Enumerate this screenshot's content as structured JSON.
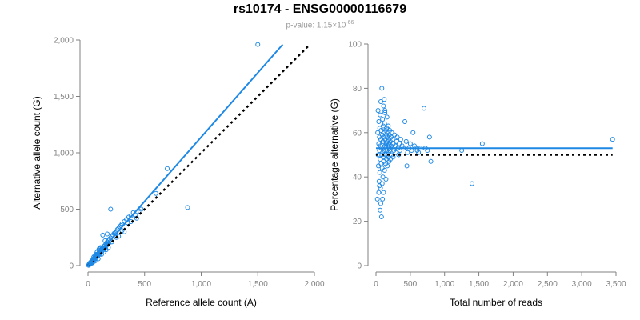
{
  "header": {
    "title": "rs10174 - ENSG00000116679",
    "pvalue_prefix": "p-value: 1.15×10",
    "pvalue_exponent": "-66"
  },
  "colors": {
    "points": "#1e88e5",
    "fit_line": "#1e88e5",
    "reference_line": "#000000",
    "axis": "#808080"
  },
  "chart_data": [
    {
      "type": "scatter",
      "title": "",
      "xlabel": "Reference allele count (A)",
      "ylabel": "Alternative allele count (G)",
      "xlim": [
        0,
        2000
      ],
      "ylim": [
        0,
        2000
      ],
      "xticks": [
        0,
        500,
        1000,
        1500,
        2000
      ],
      "xtick_labels": [
        "0",
        "500",
        "1,000",
        "1,500",
        "2,000"
      ],
      "yticks": [
        0,
        500,
        1000,
        1500,
        2000
      ],
      "ytick_labels": [
        "0",
        "500",
        "1,000",
        "1,500",
        "2,000"
      ],
      "grid": false,
      "fit_line": {
        "x": [
          0,
          1720
        ],
        "y": [
          0,
          1960
        ]
      },
      "reference_line": {
        "x": [
          0,
          1950
        ],
        "y": [
          0,
          1950
        ]
      },
      "points": [
        [
          10,
          12
        ],
        [
          15,
          18
        ],
        [
          20,
          25
        ],
        [
          12,
          8
        ],
        [
          25,
          30
        ],
        [
          30,
          35
        ],
        [
          18,
          22
        ],
        [
          35,
          40
        ],
        [
          40,
          48
        ],
        [
          28,
          33
        ],
        [
          45,
          52
        ],
        [
          50,
          60
        ],
        [
          22,
          28
        ],
        [
          55,
          65
        ],
        [
          60,
          70
        ],
        [
          38,
          45
        ],
        [
          65,
          75
        ],
        [
          70,
          80
        ],
        [
          48,
          55
        ],
        [
          75,
          85
        ],
        [
          80,
          95
        ],
        [
          58,
          68
        ],
        [
          85,
          100
        ],
        [
          90,
          105
        ],
        [
          68,
          78
        ],
        [
          95,
          110
        ],
        [
          100,
          120
        ],
        [
          78,
          90
        ],
        [
          105,
          125
        ],
        [
          110,
          130
        ],
        [
          88,
          100
        ],
        [
          115,
          140
        ],
        [
          120,
          145
        ],
        [
          98,
          115
        ],
        [
          125,
          150
        ],
        [
          130,
          160
        ],
        [
          108,
          130
        ],
        [
          140,
          170
        ],
        [
          150,
          180
        ],
        [
          160,
          195
        ],
        [
          170,
          210
        ],
        [
          180,
          225
        ],
        [
          190,
          235
        ],
        [
          200,
          245
        ],
        [
          210,
          260
        ],
        [
          220,
          270
        ],
        [
          230,
          285
        ],
        [
          240,
          290
        ],
        [
          250,
          300
        ],
        [
          260,
          320
        ],
        [
          270,
          330
        ],
        [
          280,
          345
        ],
        [
          290,
          355
        ],
        [
          300,
          370
        ],
        [
          320,
          390
        ],
        [
          340,
          410
        ],
        [
          360,
          430
        ],
        [
          380,
          440
        ],
        [
          400,
          470
        ],
        [
          150,
          220
        ],
        [
          170,
          280
        ],
        [
          200,
          500
        ],
        [
          130,
          270
        ],
        [
          210,
          210
        ],
        [
          120,
          100
        ],
        [
          90,
          60
        ],
        [
          60,
          40
        ],
        [
          40,
          25
        ],
        [
          30,
          20
        ],
        [
          20,
          12
        ],
        [
          5,
          3
        ],
        [
          8,
          10
        ],
        [
          14,
          15
        ],
        [
          26,
          22
        ],
        [
          33,
          30
        ],
        [
          44,
          42
        ],
        [
          52,
          50
        ],
        [
          63,
          60
        ],
        [
          72,
          70
        ],
        [
          83,
          80
        ],
        [
          92,
          92
        ],
        [
          102,
          100
        ],
        [
          112,
          112
        ],
        [
          122,
          125
        ],
        [
          135,
          140
        ],
        [
          145,
          155
        ],
        [
          155,
          165
        ],
        [
          165,
          180
        ],
        [
          175,
          190
        ],
        [
          185,
          200
        ],
        [
          110,
          160
        ],
        [
          100,
          150
        ],
        [
          95,
          140
        ],
        [
          80,
          120
        ],
        [
          70,
          100
        ],
        [
          60,
          90
        ],
        [
          50,
          75
        ],
        [
          140,
          120
        ],
        [
          160,
          140
        ],
        [
          180,
          160
        ],
        [
          250,
          250
        ],
        [
          270,
          260
        ],
        [
          300,
          310
        ],
        [
          320,
          300
        ],
        [
          350,
          380
        ],
        [
          380,
          390
        ],
        [
          420,
          450
        ],
        [
          430,
          420
        ],
        [
          460,
          480
        ],
        [
          470,
          500
        ],
        [
          600,
          640
        ],
        [
          700,
          860
        ],
        [
          880,
          515
        ],
        [
          1500,
          1960
        ]
      ]
    },
    {
      "type": "scatter",
      "title": "",
      "xlabel": "Total number of reads",
      "ylabel": "Percentage alternative (G)",
      "xlim": [
        0,
        3500
      ],
      "ylim": [
        0,
        100
      ],
      "xticks": [
        0,
        500,
        1000,
        1500,
        2000,
        2500,
        3000,
        3500
      ],
      "xtick_labels": [
        "0",
        "500",
        "1,000",
        "1,500",
        "2,000",
        "2,500",
        "3,000",
        "3,500"
      ],
      "yticks": [
        0,
        20,
        40,
        60,
        80,
        100
      ],
      "ytick_labels": [
        "0",
        "20",
        "40",
        "60",
        "80",
        "100"
      ],
      "grid": false,
      "fit_line": {
        "x": [
          0,
          3450
        ],
        "y": [
          53,
          53
        ]
      },
      "reference_line": {
        "x": [
          0,
          3450
        ],
        "y": [
          50,
          50
        ]
      },
      "points": [
        [
          20,
          30
        ],
        [
          25,
          60
        ],
        [
          30,
          50
        ],
        [
          30,
          70
        ],
        [
          35,
          45
        ],
        [
          40,
          55
        ],
        [
          40,
          65
        ],
        [
          45,
          38
        ],
        [
          50,
          52
        ],
        [
          50,
          58
        ],
        [
          55,
          62
        ],
        [
          55,
          42
        ],
        [
          60,
          48
        ],
        [
          60,
          68
        ],
        [
          65,
          54
        ],
        [
          65,
          35
        ],
        [
          70,
          57
        ],
        [
          70,
          74
        ],
        [
          75,
          46
        ],
        [
          75,
          61
        ],
        [
          80,
          22
        ],
        [
          80,
          53
        ],
        [
          85,
          80
        ],
        [
          85,
          50
        ],
        [
          90,
          59
        ],
        [
          90,
          44
        ],
        [
          95,
          66
        ],
        [
          95,
          51
        ],
        [
          100,
          56
        ],
        [
          100,
          40
        ],
        [
          105,
          63
        ],
        [
          105,
          49
        ],
        [
          110,
          55
        ],
        [
          110,
          33
        ],
        [
          115,
          60
        ],
        [
          115,
          47
        ],
        [
          120,
          58
        ],
        [
          120,
          52
        ],
        [
          125,
          64
        ],
        [
          125,
          43
        ],
        [
          130,
          54
        ],
        [
          130,
          70
        ],
        [
          135,
          50
        ],
        [
          135,
          57
        ],
        [
          140,
          61
        ],
        [
          140,
          46
        ],
        [
          145,
          53
        ],
        [
          145,
          39
        ],
        [
          150,
          59
        ],
        [
          150,
          55
        ],
        [
          155,
          48
        ],
        [
          155,
          62
        ],
        [
          160,
          52
        ],
        [
          160,
          67
        ],
        [
          165,
          56
        ],
        [
          165,
          45
        ],
        [
          170,
          58
        ],
        [
          170,
          50
        ],
        [
          175,
          54
        ],
        [
          175,
          60
        ],
        [
          180,
          63
        ],
        [
          180,
          49
        ],
        [
          185,
          51
        ],
        [
          185,
          57
        ],
        [
          190,
          55
        ],
        [
          190,
          47
        ],
        [
          195,
          59
        ],
        [
          195,
          53
        ],
        [
          200,
          61
        ],
        [
          200,
          52
        ],
        [
          210,
          56
        ],
        [
          210,
          48
        ],
        [
          220,
          58
        ],
        [
          220,
          54
        ],
        [
          230,
          50
        ],
        [
          230,
          60
        ],
        [
          240,
          53
        ],
        [
          240,
          57
        ],
        [
          250,
          55
        ],
        [
          250,
          49
        ],
        [
          260,
          52
        ],
        [
          270,
          59
        ],
        [
          280,
          54
        ],
        [
          290,
          51
        ],
        [
          300,
          56
        ],
        [
          310,
          58
        ],
        [
          320,
          53
        ],
        [
          330,
          50
        ],
        [
          340,
          55
        ],
        [
          350,
          52
        ],
        [
          360,
          57
        ],
        [
          380,
          54
        ],
        [
          400,
          53
        ],
        [
          420,
          65
        ],
        [
          440,
          56
        ],
        [
          450,
          45
        ],
        [
          460,
          51
        ],
        [
          480,
          53
        ],
        [
          500,
          55
        ],
        [
          520,
          52
        ],
        [
          540,
          60
        ],
        [
          560,
          54
        ],
        [
          580,
          53
        ],
        [
          600,
          52
        ],
        [
          620,
          51
        ],
        [
          650,
          53
        ],
        [
          700,
          71
        ],
        [
          720,
          53
        ],
        [
          750,
          52
        ],
        [
          780,
          58
        ],
        [
          800,
          47
        ],
        [
          60,
          25
        ],
        [
          70,
          28
        ],
        [
          40,
          33
        ],
        [
          50,
          36
        ],
        [
          90,
          37
        ],
        [
          110,
          72
        ],
        [
          120,
          75
        ],
        [
          130,
          69
        ],
        [
          95,
          30
        ],
        [
          1250,
          52
        ],
        [
          1400,
          37
        ],
        [
          1550,
          55
        ],
        [
          3450,
          57
        ]
      ]
    }
  ]
}
